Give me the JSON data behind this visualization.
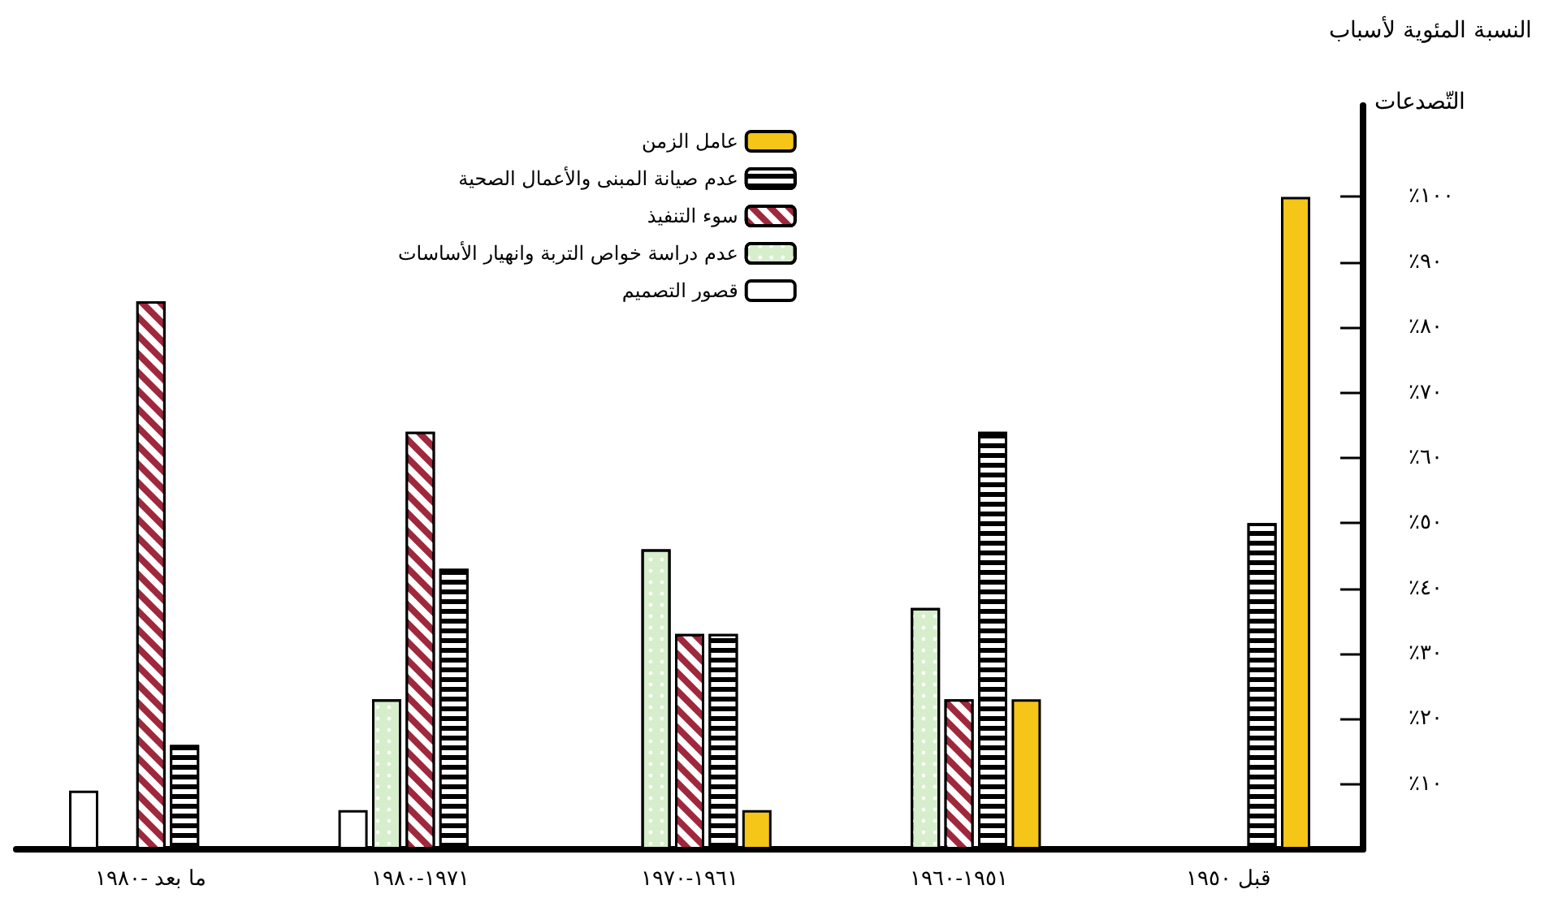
{
  "chart_data": {
    "type": "bar",
    "ylabel": "النسبة المئوية لأسباب التّصدعات",
    "categories": [
      "ما بعد -١٩٨٠",
      "١٩٧١-١٩٨٠",
      "١٩٦١-١٩٧٠",
      "١٩٥١-١٩٦٠",
      "قبل ١٩٥٠"
    ],
    "series": [
      {
        "name": "قصور التصميم",
        "color": "#ffffff",
        "values": [
          9,
          6,
          null,
          null,
          null
        ]
      },
      {
        "name": "عدم دراسة خواص التربة وانهيار الأساسات",
        "color": "#d6eecb",
        "values": [
          null,
          23,
          46,
          37,
          null
        ]
      },
      {
        "name": "سوء التنفيذ",
        "color": "#a0283c",
        "values": [
          84,
          64,
          33,
          23,
          null
        ]
      },
      {
        "name": "عدم صيانة المبنى والأعمال الصحية",
        "color": "#000000",
        "values": [
          16,
          43,
          33,
          64,
          50
        ]
      },
      {
        "name": "عامل الزمن",
        "color": "#f5c518",
        "values": [
          null,
          null,
          6,
          23,
          100
        ]
      }
    ],
    "ylim": [
      0,
      114
    ],
    "yticks": [
      {
        "value": 10,
        "label": "٪١٠"
      },
      {
        "value": 20,
        "label": "٪٢٠"
      },
      {
        "value": 30,
        "label": "٪٣٠"
      },
      {
        "value": 40,
        "label": "٪٤٠"
      },
      {
        "value": 50,
        "label": "٪٥٠"
      },
      {
        "value": 60,
        "label": "٪٦٠"
      },
      {
        "value": 70,
        "label": "٪٧٠"
      },
      {
        "value": 80,
        "label": "٪٨٠"
      },
      {
        "value": 90,
        "label": "٪٩٠"
      },
      {
        "value": 100,
        "label": "٪١٠٠"
      }
    ],
    "grid": false,
    "legend": "top left"
  }
}
